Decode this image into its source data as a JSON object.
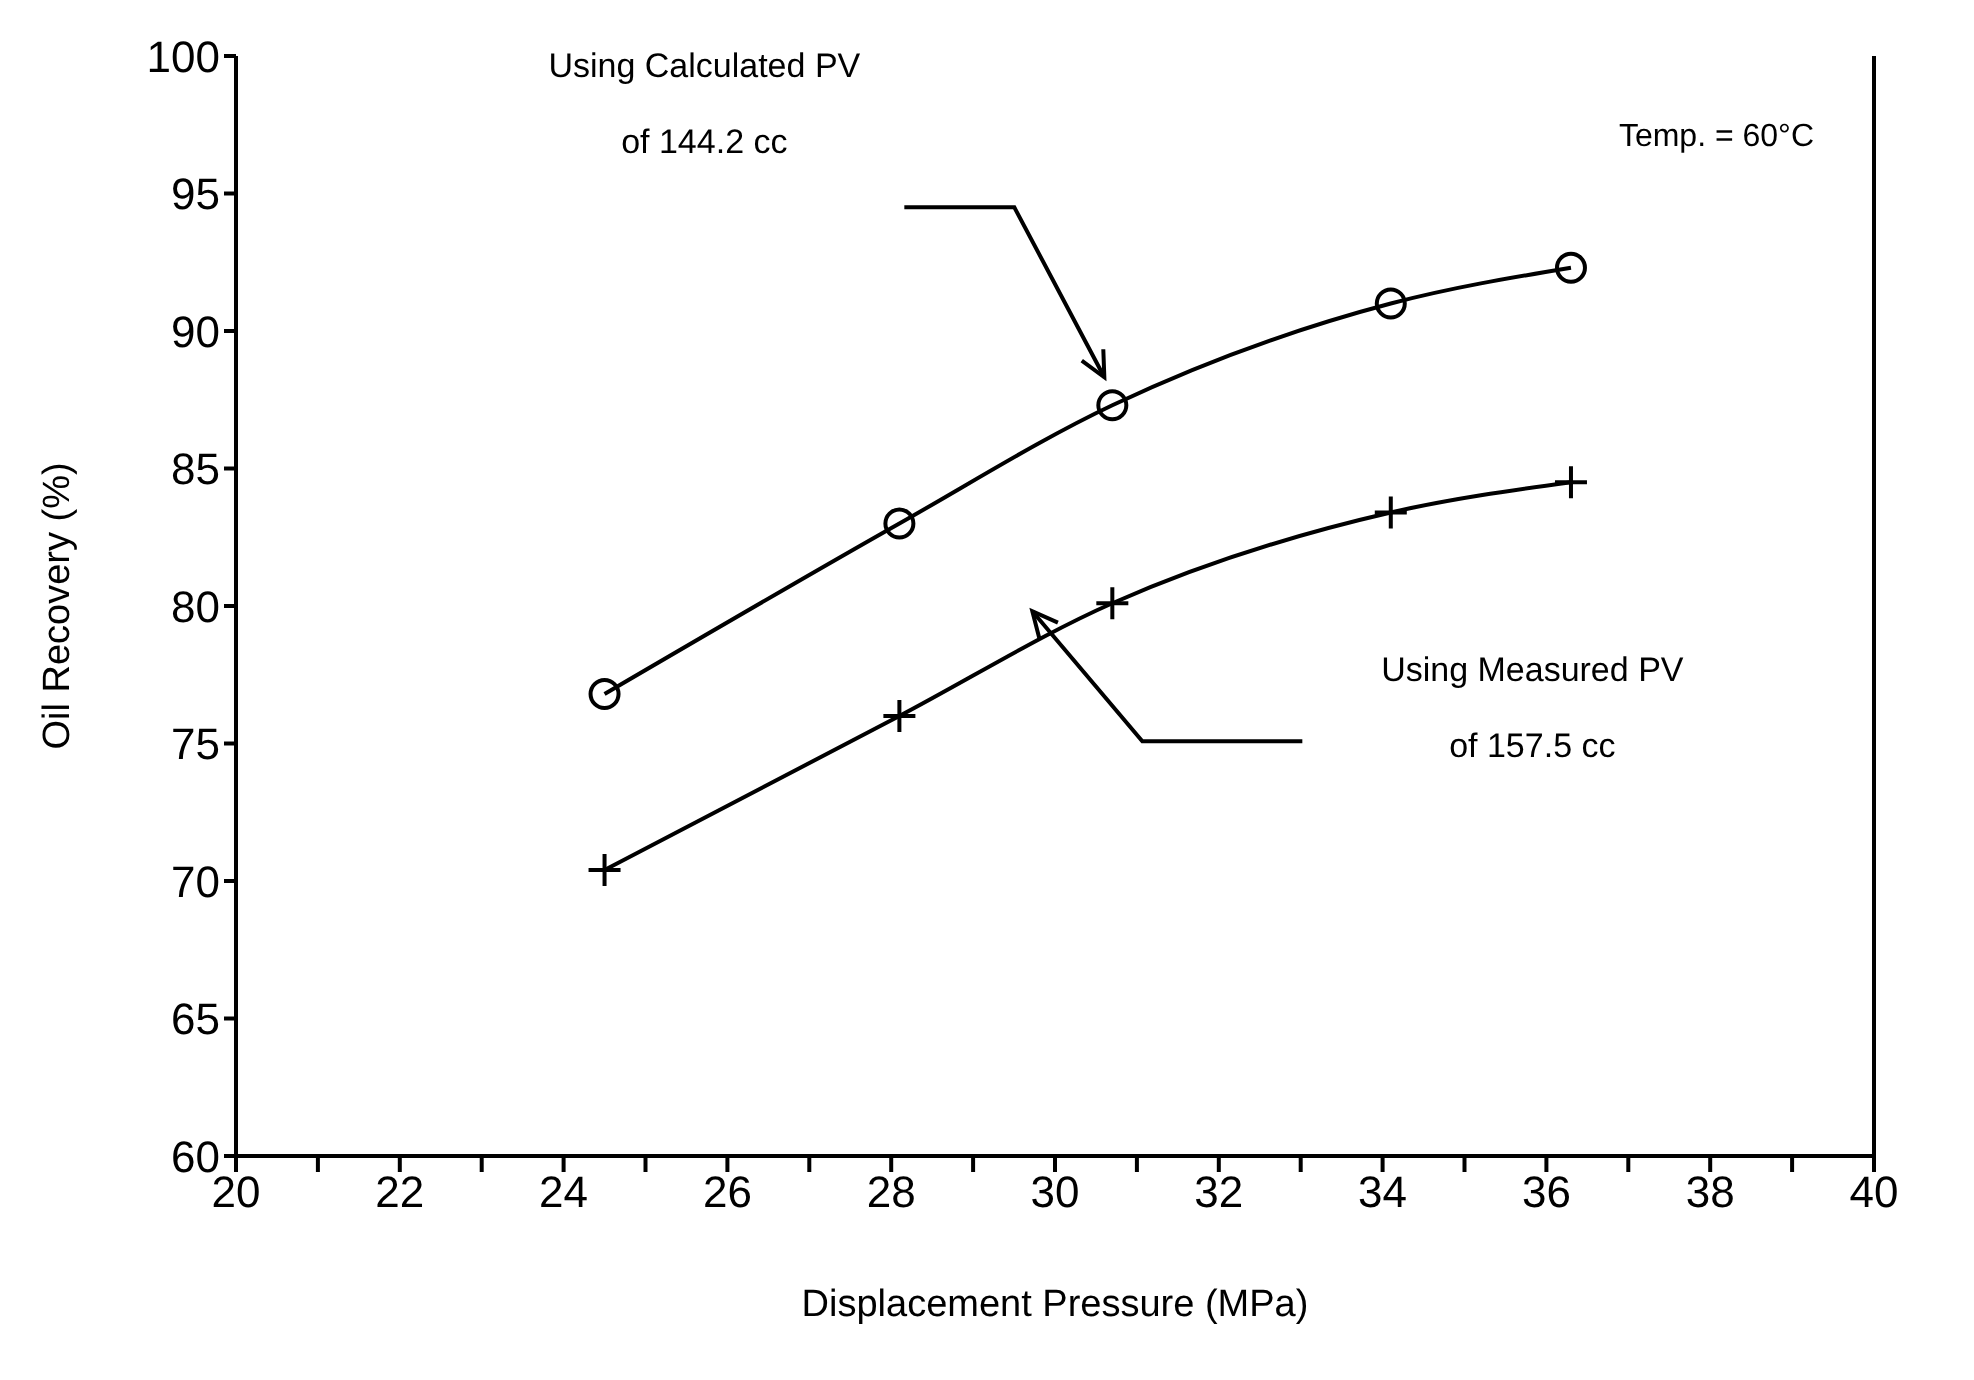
{
  "chart_data": {
    "type": "line",
    "xlabel": "Displacement Pressure (MPa)",
    "ylabel": "Oil Recovery (%)",
    "xlim": [
      20,
      40
    ],
    "xticks": [
      20,
      {
        "value": 21,
        "label": null
      },
      22,
      {
        "value": 23,
        "label": null
      },
      24,
      {
        "value": 25,
        "label": null
      },
      26,
      {
        "value": 27,
        "label": null
      },
      28,
      {
        "value": 29,
        "label": null
      },
      30,
      {
        "value": 31,
        "label": null
      },
      32,
      {
        "value": 33,
        "label": null
      },
      34,
      {
        "value": 35,
        "label": null
      },
      36,
      {
        "value": 37,
        "label": null
      },
      38,
      {
        "value": 39,
        "label": null
      },
      40
    ],
    "ylim": [
      60,
      100
    ],
    "yticks": [
      60,
      65,
      70,
      75,
      80,
      85,
      90,
      95,
      100
    ],
    "series": [
      {
        "color": "#000000",
        "marker": "circle",
        "x": [
          24.5,
          28.1,
          30.7,
          34.1,
          36.3
        ],
        "values": [
          76.8,
          83.0,
          87.3,
          91.0,
          92.3
        ]
      },
      {
        "color": "#000000",
        "marker": "cross",
        "x": [
          24.5,
          28.1,
          30.7,
          34.1,
          36.3
        ],
        "values": [
          70.4,
          76.0,
          80.1,
          83.4,
          84.5
        ]
      }
    ],
    "annotations": [
      "Using Calculated PV\nof 144.2 cc",
      "Using Measured PV\nof 157.5 cc",
      "Temp. = 60°C"
    ]
  }
}
